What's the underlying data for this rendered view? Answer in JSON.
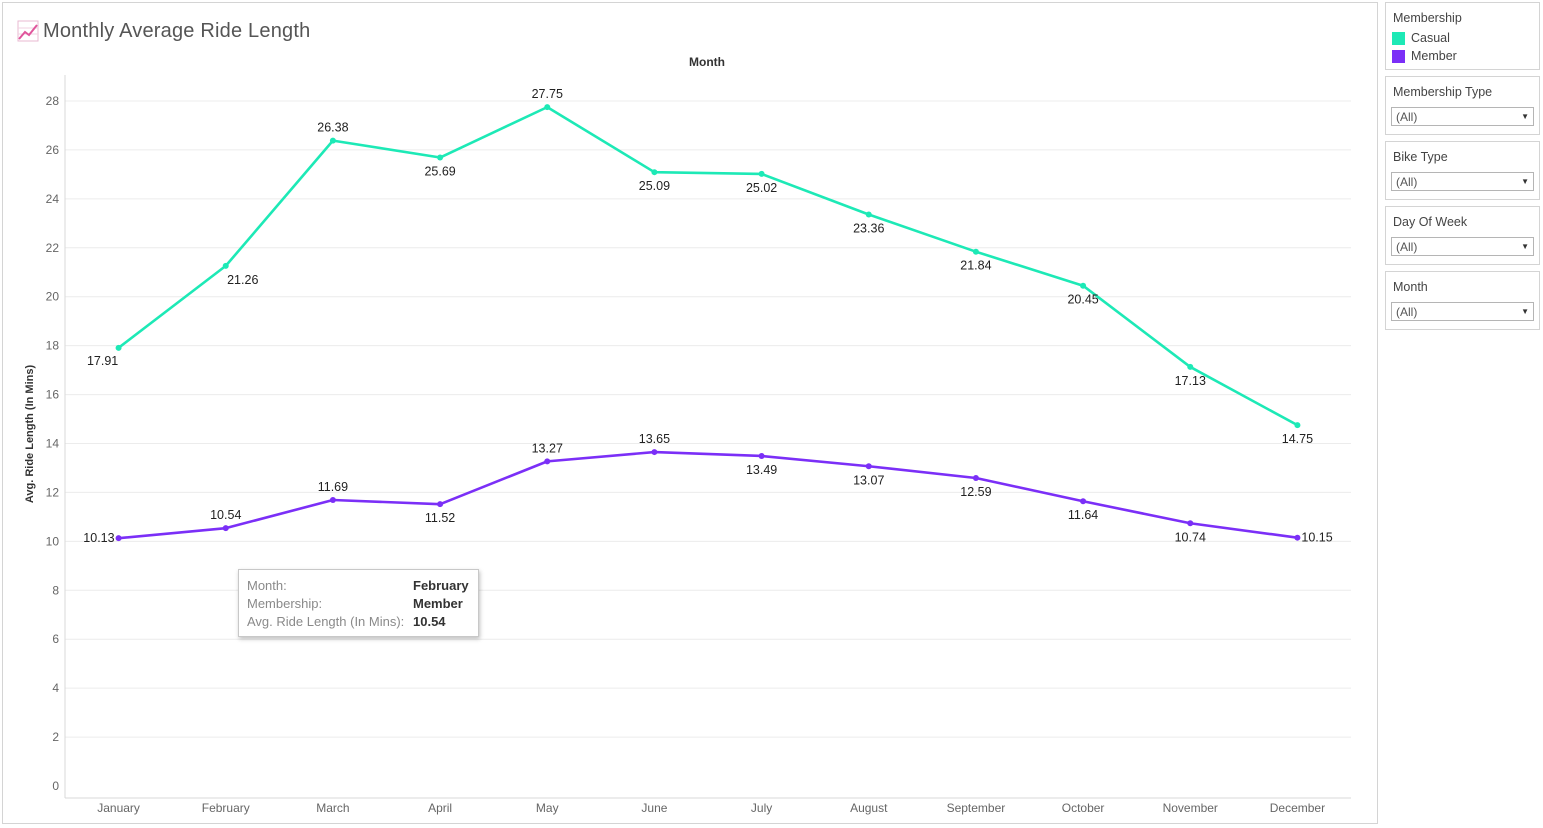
{
  "title": "Monthly Average Ride Length",
  "colors": {
    "casual": "#1de9b6",
    "member": "#7b2ff7",
    "title_icon": "#e0559c"
  },
  "chart_data": {
    "type": "line",
    "title": "Monthly Average Ride Length",
    "header": "Month",
    "xlabel": "",
    "ylabel": "Avg. Ride Length (In Mins)",
    "categories": [
      "January",
      "February",
      "March",
      "April",
      "May",
      "June",
      "July",
      "August",
      "September",
      "October",
      "November",
      "December"
    ],
    "ylim": [
      0,
      28
    ],
    "yticks": [
      0,
      2,
      4,
      6,
      8,
      10,
      12,
      14,
      16,
      18,
      20,
      22,
      24,
      26,
      28
    ],
    "grid": true,
    "legend": "right",
    "series": [
      {
        "name": "Casual",
        "color": "#1de9b6",
        "values": [
          17.91,
          21.26,
          26.38,
          25.69,
          27.75,
          25.09,
          25.02,
          23.36,
          21.84,
          20.45,
          17.13,
          14.75
        ]
      },
      {
        "name": "Member",
        "color": "#7b2ff7",
        "values": [
          10.13,
          10.54,
          11.69,
          11.52,
          13.27,
          13.65,
          13.49,
          13.07,
          12.59,
          11.64,
          10.74,
          10.15
        ]
      }
    ]
  },
  "tooltip": {
    "rows": [
      {
        "key": "Month:",
        "value": "February"
      },
      {
        "key": "Membership:",
        "value": "Member"
      },
      {
        "key": "Avg. Ride Length (In Mins):",
        "value": "10.54"
      }
    ]
  },
  "legend": {
    "title": "Membership",
    "items": [
      {
        "label": "Casual",
        "color": "#1de9b6"
      },
      {
        "label": "Member",
        "color": "#7b2ff7"
      }
    ]
  },
  "filters": [
    {
      "title": "Membership Type",
      "value": "(All)"
    },
    {
      "title": "Bike Type",
      "value": "(All)"
    },
    {
      "title": "Day Of Week",
      "value": "(All)"
    },
    {
      "title": "Month",
      "value": "(All)"
    }
  ]
}
